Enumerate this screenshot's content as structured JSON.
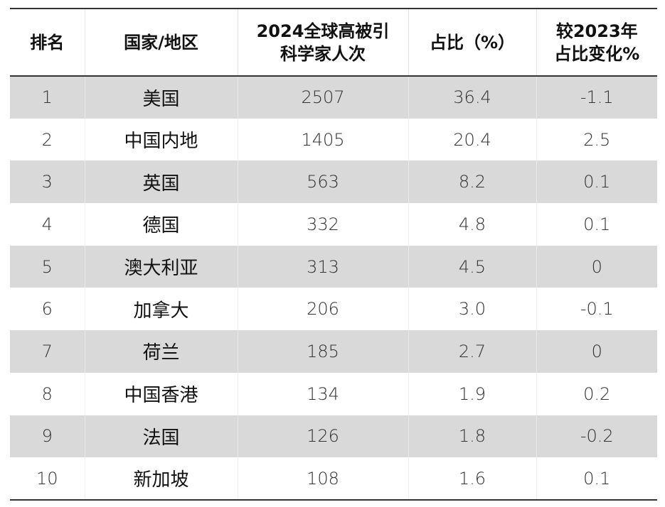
{
  "table": {
    "headers": {
      "rank": "排名",
      "region": "国家/地区",
      "count_line1": "2024全球高被引",
      "count_line2": "科学家人次",
      "share": "占比（%）",
      "change_line1": "较2023年",
      "change_line2": "占比变化%"
    },
    "rows": [
      {
        "rank": "1",
        "region": "美国",
        "count": "2507",
        "share": "36.4",
        "change": "-1.1"
      },
      {
        "rank": "2",
        "region": "中国内地",
        "count": "1405",
        "share": "20.4",
        "change": "2.5"
      },
      {
        "rank": "3",
        "region": "英国",
        "count": "563",
        "share": "8.2",
        "change": "0.1"
      },
      {
        "rank": "4",
        "region": "德国",
        "count": "332",
        "share": "4.8",
        "change": "0.1"
      },
      {
        "rank": "5",
        "region": "澳大利亚",
        "count": "313",
        "share": "4.5",
        "change": "0"
      },
      {
        "rank": "6",
        "region": "加拿大",
        "count": "206",
        "share": "3.0",
        "change": "-0.1"
      },
      {
        "rank": "7",
        "region": "荷兰",
        "count": "185",
        "share": "2.7",
        "change": "0"
      },
      {
        "rank": "8",
        "region": "中国香港",
        "count": "134",
        "share": "1.9",
        "change": "0.2"
      },
      {
        "rank": "9",
        "region": "法国",
        "count": "126",
        "share": "1.8",
        "change": "-0.2"
      },
      {
        "rank": "10",
        "region": "新加坡",
        "count": "108",
        "share": "1.6",
        "change": "0.1"
      }
    ]
  }
}
